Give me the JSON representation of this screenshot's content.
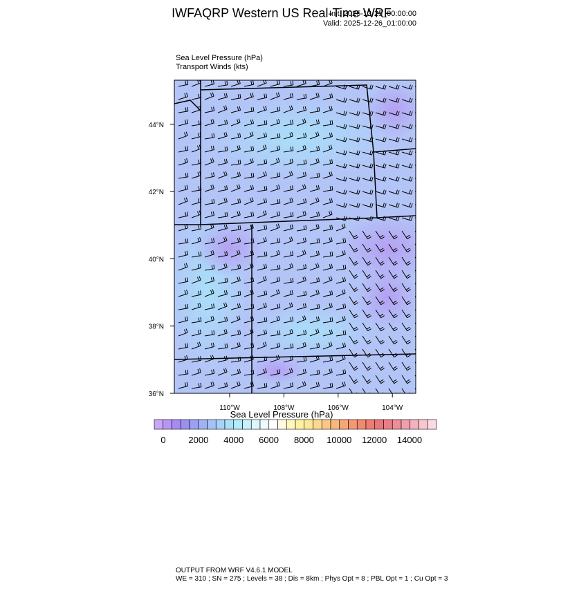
{
  "header": {
    "title": "IWFAQRP Western US Real-Time WRF",
    "init": "Init: 2025-12-25_00:00:00",
    "valid": "Valid: 2025-12-26_01:00:00"
  },
  "fields": [
    "Sea Level Pressure   (hPa)",
    "Transport Winds   (kts)"
  ],
  "map": {
    "lat_ticks": [
      {
        "value": 44,
        "label": "44°N"
      },
      {
        "value": 42,
        "label": "42°N"
      },
      {
        "value": 40,
        "label": "40°N"
      },
      {
        "value": 38,
        "label": "38°N"
      },
      {
        "value": 36,
        "label": "36°N"
      }
    ],
    "lon_ticks": [
      {
        "value": -110,
        "label": "110°W"
      },
      {
        "value": -108,
        "label": "108°W"
      },
      {
        "value": -106,
        "label": "106°W"
      },
      {
        "value": -104,
        "label": "104°W"
      }
    ]
  },
  "colorbar": {
    "title": "Sea Level Pressure  (hPa)",
    "ticks": [
      0,
      2000,
      4000,
      6000,
      8000,
      10000,
      12000,
      14000
    ],
    "colors": [
      "#c9a6f7",
      "#b796f5",
      "#a58bf2",
      "#9a90f2",
      "#9ca0f4",
      "#a1b1f6",
      "#a6c2f8",
      "#a8d2f9",
      "#a9e0fa",
      "#b2ebfb",
      "#c6f2fc",
      "#dcf7fd",
      "#eefbfe",
      "#ffffff",
      "#fffbe0",
      "#fff6c0",
      "#fff0a4",
      "#fde89a",
      "#fcd890",
      "#fbc786",
      "#f9b67d",
      "#f7a676",
      "#f59772",
      "#f2896f",
      "#ee7d72",
      "#eb7679",
      "#ea7d88",
      "#ec8d99",
      "#f09eab",
      "#f4b1be",
      "#f8c6d1",
      "#fbdbe3"
    ]
  },
  "footer": [
    "OUTPUT FROM WRF V4.6.1 MODEL",
    "WE = 310 ; SN = 275 ; Levels = 38 ; Dis = 8km ; Phys Opt = 8 ; PBL Opt = 1 ; Cu Opt = 3"
  ]
}
